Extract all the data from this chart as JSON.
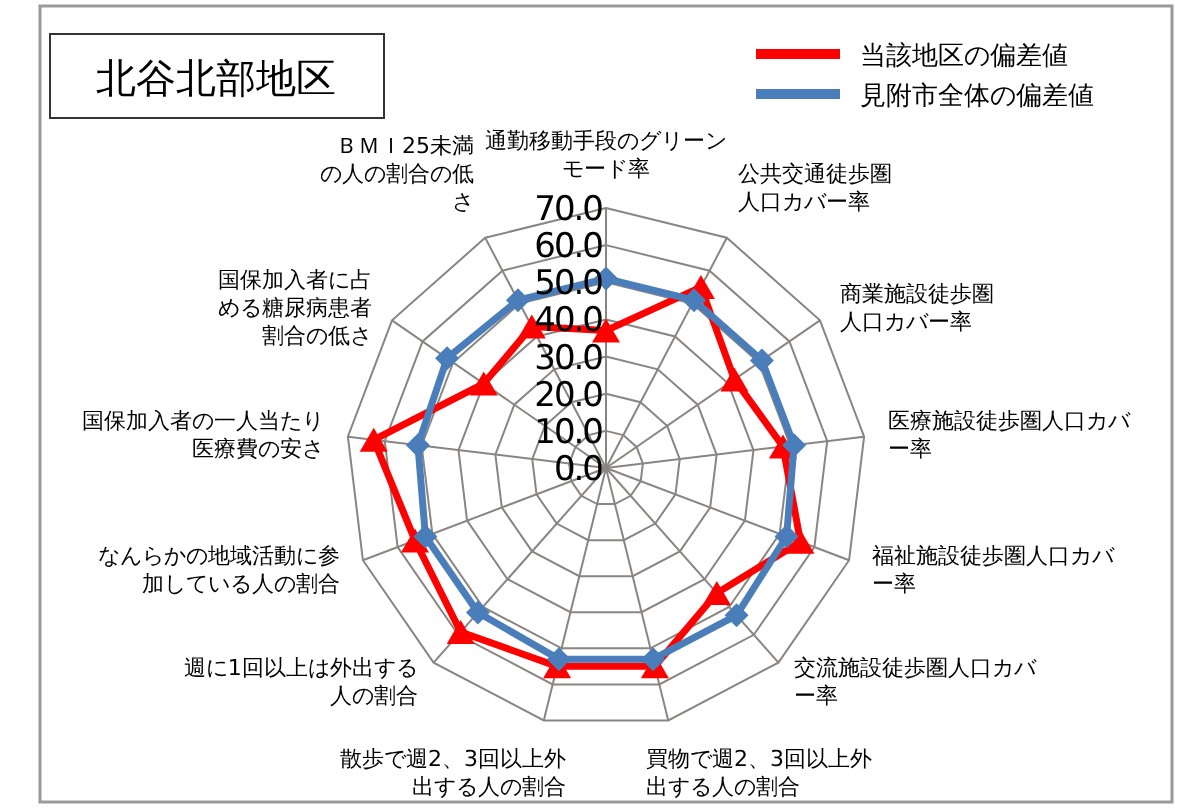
{
  "chart_data": {
    "type": "radar",
    "title": "北谷北部地区",
    "categories": [
      "通勤移動手段のグリーンモード率",
      "公共交通徒歩圏人口カバー率",
      "商業施設徒歩圏人口カバー率",
      "医療施設徒歩圏人口カバー率",
      "福祉施設徒歩圏人口カバー率",
      "交流施設徒歩圏人口カバー率",
      "買物で週2、3回以上外出する人の割合",
      "散歩で週2、3回以上外出する人の割合",
      "週に1回以上は外出する人の割合",
      "なんらかの地域活動に参加している人の割合",
      "国保加入者の一人当たり医療費の安さ",
      "国保加入者に占める糖尿病患者割合の低さ",
      "ＢＭＩ25未満の人の割合の低さ"
    ],
    "series": [
      {
        "name": "当該地区の偏差値",
        "color": "#ff0000",
        "marker": "triangle",
        "values": [
          37,
          55,
          42,
          48,
          56,
          45,
          55,
          55,
          59,
          55,
          63,
          40,
          43
        ]
      },
      {
        "name": "見附市全体の偏差値",
        "color": "#4a7ebb",
        "marker": "diamond",
        "values": [
          51,
          51,
          51,
          51,
          52,
          53,
          53,
          53,
          52,
          52,
          51,
          52,
          51
        ]
      }
    ],
    "ylim": [
      0,
      70
    ],
    "yticks": [
      {
        "value": 0,
        "label": "0.0"
      },
      {
        "value": 10,
        "label": "10.0"
      },
      {
        "value": 20,
        "label": "20.0"
      },
      {
        "value": 30,
        "label": "30.0"
      },
      {
        "value": 40,
        "label": "40.0"
      },
      {
        "value": 50,
        "label": "50.0"
      },
      {
        "value": 60,
        "label": "60.0"
      },
      {
        "value": 70,
        "label": "70.0"
      }
    ],
    "grid": true,
    "legend": "top right"
  }
}
